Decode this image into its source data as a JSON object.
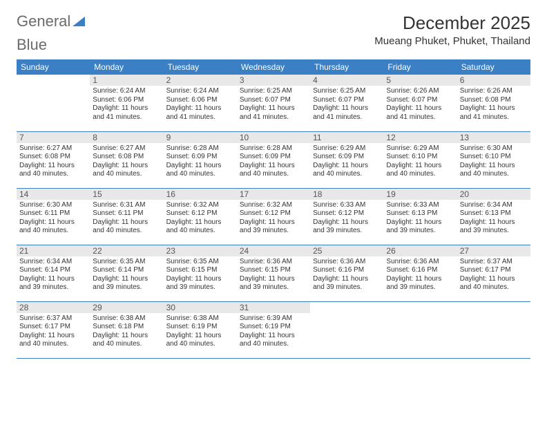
{
  "logo": {
    "word1": "General",
    "word2": "Blue"
  },
  "title": "December 2025",
  "subtitle": "Mueang Phuket, Phuket, Thailand",
  "colors": {
    "header_bg": "#3b7fc4",
    "header_text": "#ffffff",
    "daynum_bg": "#e8e8e8",
    "border": "#3b7fc4",
    "text": "#333333",
    "logo_gray": "#6b6b6b",
    "logo_blue": "#3b7fc4"
  },
  "dayNames": [
    "Sunday",
    "Monday",
    "Tuesday",
    "Wednesday",
    "Thursday",
    "Friday",
    "Saturday"
  ],
  "firstDayOffset": 1,
  "days": [
    {
      "n": 1,
      "sunrise": "6:24 AM",
      "sunset": "6:06 PM",
      "daylight": "11 hours and 41 minutes."
    },
    {
      "n": 2,
      "sunrise": "6:24 AM",
      "sunset": "6:06 PM",
      "daylight": "11 hours and 41 minutes."
    },
    {
      "n": 3,
      "sunrise": "6:25 AM",
      "sunset": "6:07 PM",
      "daylight": "11 hours and 41 minutes."
    },
    {
      "n": 4,
      "sunrise": "6:25 AM",
      "sunset": "6:07 PM",
      "daylight": "11 hours and 41 minutes."
    },
    {
      "n": 5,
      "sunrise": "6:26 AM",
      "sunset": "6:07 PM",
      "daylight": "11 hours and 41 minutes."
    },
    {
      "n": 6,
      "sunrise": "6:26 AM",
      "sunset": "6:08 PM",
      "daylight": "11 hours and 41 minutes."
    },
    {
      "n": 7,
      "sunrise": "6:27 AM",
      "sunset": "6:08 PM",
      "daylight": "11 hours and 40 minutes."
    },
    {
      "n": 8,
      "sunrise": "6:27 AM",
      "sunset": "6:08 PM",
      "daylight": "11 hours and 40 minutes."
    },
    {
      "n": 9,
      "sunrise": "6:28 AM",
      "sunset": "6:09 PM",
      "daylight": "11 hours and 40 minutes."
    },
    {
      "n": 10,
      "sunrise": "6:28 AM",
      "sunset": "6:09 PM",
      "daylight": "11 hours and 40 minutes."
    },
    {
      "n": 11,
      "sunrise": "6:29 AM",
      "sunset": "6:09 PM",
      "daylight": "11 hours and 40 minutes."
    },
    {
      "n": 12,
      "sunrise": "6:29 AM",
      "sunset": "6:10 PM",
      "daylight": "11 hours and 40 minutes."
    },
    {
      "n": 13,
      "sunrise": "6:30 AM",
      "sunset": "6:10 PM",
      "daylight": "11 hours and 40 minutes."
    },
    {
      "n": 14,
      "sunrise": "6:30 AM",
      "sunset": "6:11 PM",
      "daylight": "11 hours and 40 minutes."
    },
    {
      "n": 15,
      "sunrise": "6:31 AM",
      "sunset": "6:11 PM",
      "daylight": "11 hours and 40 minutes."
    },
    {
      "n": 16,
      "sunrise": "6:32 AM",
      "sunset": "6:12 PM",
      "daylight": "11 hours and 40 minutes."
    },
    {
      "n": 17,
      "sunrise": "6:32 AM",
      "sunset": "6:12 PM",
      "daylight": "11 hours and 39 minutes."
    },
    {
      "n": 18,
      "sunrise": "6:33 AM",
      "sunset": "6:12 PM",
      "daylight": "11 hours and 39 minutes."
    },
    {
      "n": 19,
      "sunrise": "6:33 AM",
      "sunset": "6:13 PM",
      "daylight": "11 hours and 39 minutes."
    },
    {
      "n": 20,
      "sunrise": "6:34 AM",
      "sunset": "6:13 PM",
      "daylight": "11 hours and 39 minutes."
    },
    {
      "n": 21,
      "sunrise": "6:34 AM",
      "sunset": "6:14 PM",
      "daylight": "11 hours and 39 minutes."
    },
    {
      "n": 22,
      "sunrise": "6:35 AM",
      "sunset": "6:14 PM",
      "daylight": "11 hours and 39 minutes."
    },
    {
      "n": 23,
      "sunrise": "6:35 AM",
      "sunset": "6:15 PM",
      "daylight": "11 hours and 39 minutes."
    },
    {
      "n": 24,
      "sunrise": "6:36 AM",
      "sunset": "6:15 PM",
      "daylight": "11 hours and 39 minutes."
    },
    {
      "n": 25,
      "sunrise": "6:36 AM",
      "sunset": "6:16 PM",
      "daylight": "11 hours and 39 minutes."
    },
    {
      "n": 26,
      "sunrise": "6:36 AM",
      "sunset": "6:16 PM",
      "daylight": "11 hours and 39 minutes."
    },
    {
      "n": 27,
      "sunrise": "6:37 AM",
      "sunset": "6:17 PM",
      "daylight": "11 hours and 40 minutes."
    },
    {
      "n": 28,
      "sunrise": "6:37 AM",
      "sunset": "6:17 PM",
      "daylight": "11 hours and 40 minutes."
    },
    {
      "n": 29,
      "sunrise": "6:38 AM",
      "sunset": "6:18 PM",
      "daylight": "11 hours and 40 minutes."
    },
    {
      "n": 30,
      "sunrise": "6:38 AM",
      "sunset": "6:19 PM",
      "daylight": "11 hours and 40 minutes."
    },
    {
      "n": 31,
      "sunrise": "6:39 AM",
      "sunset": "6:19 PM",
      "daylight": "11 hours and 40 minutes."
    }
  ],
  "labels": {
    "sunrise": "Sunrise:",
    "sunset": "Sunset:",
    "daylight": "Daylight:"
  }
}
